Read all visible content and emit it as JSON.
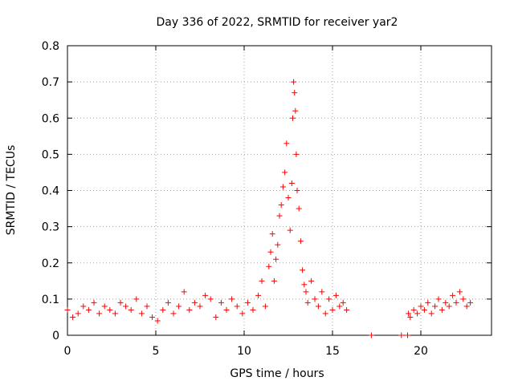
{
  "chart_data": {
    "type": "scatter",
    "title": "Day 336 of 2022, SRMTID for receiver yar2",
    "xlabel": "GPS time / hours",
    "ylabel": "SRMTID / TECUs",
    "xlim": [
      0,
      24
    ],
    "ylim": [
      0,
      0.8
    ],
    "x_ticks": [
      0,
      5,
      10,
      15,
      20
    ],
    "y_ticks": [
      0,
      0.1,
      0.2,
      0.3,
      0.4,
      0.5,
      0.6,
      0.7,
      0.8
    ],
    "x_tick_labels": [
      "0",
      "5",
      "10",
      "15",
      "20"
    ],
    "y_tick_labels": [
      "0",
      "0.1",
      "0.2",
      "0.3",
      "0.4",
      "0.5",
      "0.6",
      "0.7",
      "0.8"
    ],
    "grid": true,
    "marker": "+",
    "series": [
      {
        "name": "yar2",
        "color": "#ff0000",
        "x": [
          0.0,
          0.3,
          0.6,
          0.9,
          1.2,
          1.5,
          1.8,
          2.1,
          2.4,
          2.7,
          3.0,
          3.3,
          3.6,
          3.9,
          4.2,
          4.5,
          4.8,
          5.1,
          5.4,
          5.7,
          6.0,
          6.3,
          6.6,
          6.9,
          7.2,
          7.5,
          7.8,
          8.1,
          8.4,
          8.7,
          9.0,
          9.3,
          9.6,
          9.9,
          10.2,
          10.5,
          10.8,
          11.0,
          11.2,
          11.4,
          11.5,
          11.6,
          11.7,
          11.8,
          11.9,
          12.0,
          12.1,
          12.2,
          12.3,
          12.4,
          12.5,
          12.6,
          12.7,
          12.75,
          12.8,
          12.85,
          12.9,
          12.95,
          13.0,
          13.1,
          13.2,
          13.3,
          13.4,
          13.5,
          13.6,
          13.8,
          14.0,
          14.2,
          14.4,
          14.6,
          14.8,
          15.0,
          15.2,
          15.4,
          15.6,
          15.8,
          17.2,
          18.9,
          19.25,
          19.3,
          19.4,
          19.6,
          19.8,
          20.0,
          20.2,
          20.4,
          20.6,
          20.8,
          21.0,
          21.2,
          21.4,
          21.6,
          21.8,
          22.0,
          22.2,
          22.4,
          22.6,
          22.8
        ],
        "y": [
          0.07,
          0.05,
          0.06,
          0.08,
          0.07,
          0.09,
          0.06,
          0.08,
          0.07,
          0.06,
          0.09,
          0.08,
          0.07,
          0.1,
          0.06,
          0.08,
          0.05,
          0.04,
          0.07,
          0.09,
          0.06,
          0.08,
          0.12,
          0.07,
          0.09,
          0.08,
          0.11,
          0.1,
          0.05,
          0.09,
          0.07,
          0.1,
          0.08,
          0.06,
          0.09,
          0.07,
          0.11,
          0.15,
          0.08,
          0.19,
          0.23,
          0.28,
          0.15,
          0.21,
          0.25,
          0.33,
          0.36,
          0.41,
          0.45,
          0.53,
          0.38,
          0.29,
          0.42,
          0.6,
          0.7,
          0.67,
          0.62,
          0.5,
          0.4,
          0.35,
          0.26,
          0.18,
          0.14,
          0.12,
          0.09,
          0.15,
          0.1,
          0.08,
          0.12,
          0.06,
          0.1,
          0.07,
          0.11,
          0.08,
          0.09,
          0.07,
          0.0,
          0.0,
          0.0,
          0.06,
          0.05,
          0.07,
          0.06,
          0.08,
          0.07,
          0.09,
          0.06,
          0.08,
          0.1,
          0.07,
          0.09,
          0.08,
          0.11,
          0.09,
          0.12,
          0.1,
          0.08,
          0.09
        ]
      }
    ]
  }
}
